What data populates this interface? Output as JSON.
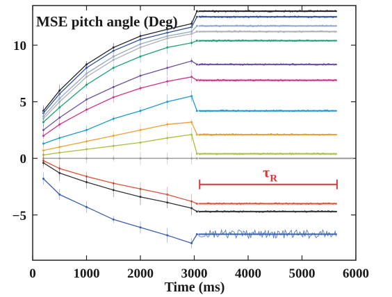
{
  "chart_data": {
    "type": "line",
    "title": "MSE pitch angle (Deg)",
    "xlabel": "Time (ms)",
    "ylabel": "",
    "xlim": [
      0,
      6000
    ],
    "ylim": [
      -9,
      13.5
    ],
    "x_ticks": [
      {
        "value": 0,
        "label": "0"
      },
      {
        "value": 1000,
        "label": "1000"
      },
      {
        "value": 2000,
        "label": "2000"
      },
      {
        "value": 3000,
        "label": "3000"
      },
      {
        "value": 4000,
        "label": "4000"
      },
      {
        "value": 5000,
        "label": "5000"
      },
      {
        "value": 6000,
        "label": "6000"
      }
    ],
    "y_ticks": [
      {
        "value": -5,
        "label": "−5"
      },
      {
        "value": 0,
        "label": "0"
      },
      {
        "value": 5,
        "label": "5"
      },
      {
        "value": 10,
        "label": "10"
      }
    ],
    "annotation": {
      "symbol": "τ",
      "subscript": "R",
      "x_start": 3100,
      "x_end": 5650,
      "y": -2.3,
      "color": "#d23a3a"
    },
    "series": [
      {
        "color": "#222222",
        "x": [
          200,
          500,
          1000,
          1500,
          2000,
          2500,
          2950,
          3050
        ],
        "y": [
          4.2,
          6.0,
          8.3,
          9.8,
          10.8,
          11.4,
          11.9,
          13.0
        ],
        "flat_value": 13.0,
        "flat_end": 5650
      },
      {
        "color": "#2f4f9a",
        "x": [
          200,
          500,
          1000,
          1500,
          2000,
          2500,
          2950,
          3050
        ],
        "y": [
          4.0,
          5.7,
          8.0,
          9.5,
          10.5,
          11.1,
          11.6,
          12.5
        ],
        "flat_value": 12.5,
        "flat_end": 5650
      },
      {
        "color": "#8fa8c8",
        "x": [
          200,
          500,
          1000,
          1500,
          2000,
          2500,
          2950,
          3050
        ],
        "y": [
          3.7,
          5.3,
          7.5,
          9.0,
          10.1,
          10.8,
          11.2,
          11.7
        ],
        "flat_value": 11.7,
        "flat_end": 5650
      },
      {
        "color": "#b0b0b0",
        "x": [
          200,
          500,
          1000,
          1500,
          2000,
          2500,
          2950,
          3050
        ],
        "y": [
          3.5,
          5.0,
          7.2,
          8.7,
          9.8,
          10.6,
          11.0,
          11.2
        ],
        "flat_value": 11.2,
        "flat_end": 5650
      },
      {
        "color": "#1aa070",
        "x": [
          200,
          500,
          1000,
          1500,
          2000,
          2500,
          2950,
          3050
        ],
        "y": [
          3.2,
          4.5,
          6.5,
          8.0,
          9.0,
          9.8,
          10.2,
          10.4
        ],
        "flat_value": 10.4,
        "flat_end": 5650
      },
      {
        "color": "#6a4fa0",
        "x": [
          200,
          500,
          1000,
          1500,
          2000,
          2500,
          2950,
          3050
        ],
        "y": [
          2.5,
          3.6,
          5.2,
          6.3,
          7.3,
          8.0,
          8.6,
          8.3
        ],
        "flat_value": 8.3,
        "flat_end": 5650
      },
      {
        "color": "#d0308a",
        "x": [
          200,
          500,
          1000,
          1500,
          2000,
          2500,
          2950,
          3050
        ],
        "y": [
          2.0,
          3.0,
          4.3,
          5.4,
          6.2,
          6.8,
          7.2,
          6.9
        ],
        "flat_value": 6.9,
        "flat_end": 5650
      },
      {
        "color": "#1a9ad0",
        "x": [
          200,
          500,
          1000,
          1500,
          2000,
          2500,
          2950,
          3050
        ],
        "y": [
          1.3,
          1.8,
          2.5,
          3.5,
          4.2,
          5.0,
          5.5,
          4.2
        ],
        "flat_value": 4.2,
        "flat_end": 5650
      },
      {
        "color": "#f0a030",
        "x": [
          200,
          500,
          1000,
          1500,
          2000,
          2500,
          2950,
          3050
        ],
        "y": [
          0.7,
          1.0,
          1.5,
          2.0,
          2.5,
          3.0,
          3.2,
          2.1
        ],
        "flat_value": 2.1,
        "flat_end": 5650
      },
      {
        "color": "#a8c040",
        "x": [
          200,
          500,
          1000,
          1500,
          2000,
          2500,
          2950,
          3050
        ],
        "y": [
          0.3,
          0.5,
          0.8,
          1.1,
          1.4,
          1.8,
          2.1,
          0.4
        ],
        "flat_value": 0.4,
        "flat_end": 5650
      },
      {
        "color": "#999999",
        "x": [
          200,
          500,
          1000,
          1500,
          2000,
          2500,
          2950,
          3050
        ],
        "y": [
          0.0,
          0.0,
          0.0,
          0.0,
          0.0,
          0.0,
          0.0,
          0.0
        ],
        "flat_value": 0.0,
        "flat_end": 5950
      },
      {
        "color": "#d9503a",
        "x": [
          200,
          500,
          1000,
          1500,
          2000,
          2500,
          2950,
          3050
        ],
        "y": [
          -0.2,
          -0.9,
          -1.6,
          -2.2,
          -2.7,
          -3.2,
          -3.8,
          -4.0
        ],
        "flat_value": -4.0,
        "flat_end": 5650
      },
      {
        "color": "#333333",
        "x": [
          200,
          500,
          1000,
          1500,
          2000,
          2500,
          2950,
          3050
        ],
        "y": [
          -0.4,
          -1.3,
          -2.1,
          -2.8,
          -3.4,
          -3.9,
          -4.4,
          -4.7
        ],
        "flat_value": -4.7,
        "flat_end": 5650
      },
      {
        "color": "#3a5fb0",
        "x": [
          200,
          500,
          1000,
          1500,
          2000,
          2500,
          2950,
          3050
        ],
        "y": [
          -1.8,
          -3.2,
          -4.3,
          -5.4,
          -6.1,
          -6.8,
          -7.5,
          -6.7
        ],
        "flat_value": -6.7,
        "flat_end": 5650
      }
    ]
  }
}
